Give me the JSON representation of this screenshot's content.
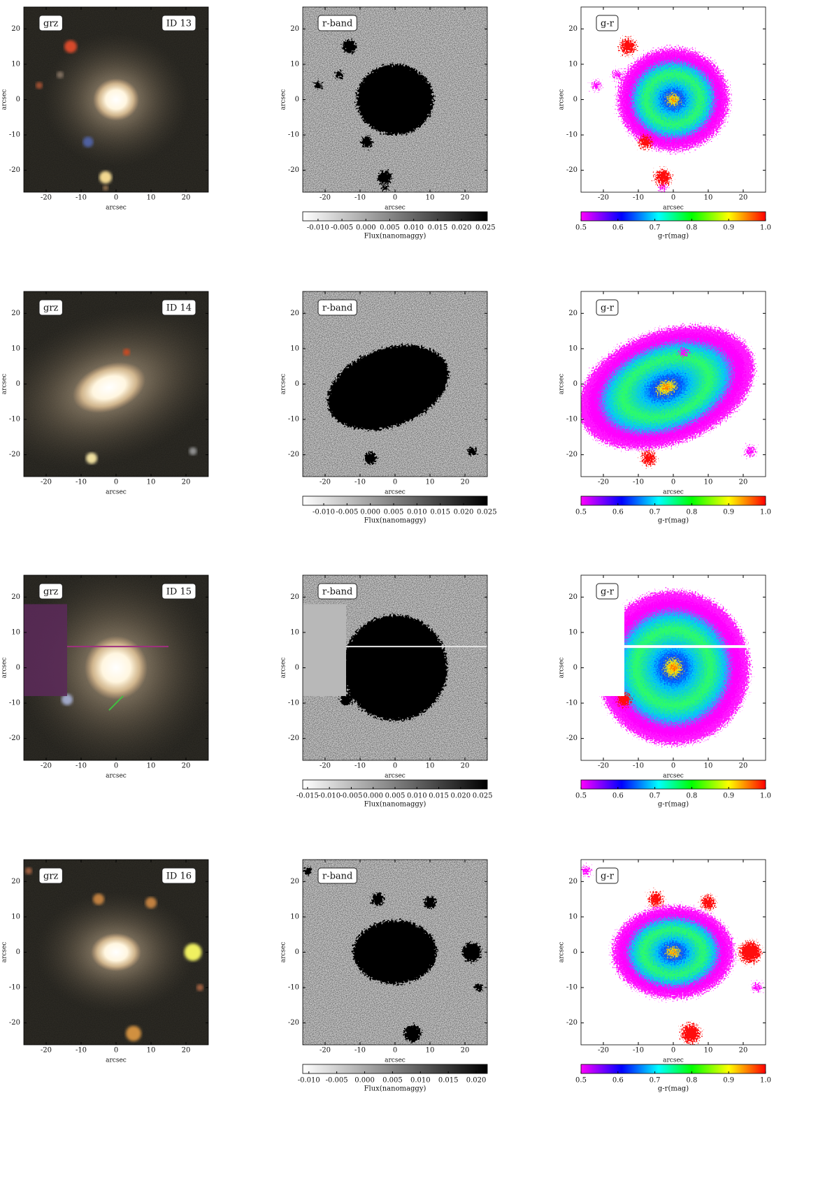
{
  "figure": {
    "image_axis": {
      "label": "arcsec",
      "xlim": [
        -26.4,
        26.4
      ],
      "ylim": [
        -26.2,
        26.2
      ],
      "xticks": [
        -20,
        -10,
        0,
        10,
        20
      ],
      "yticks": [
        -20,
        -10,
        0,
        10,
        20
      ]
    },
    "band_labels": [
      "grz",
      "r-band",
      "g-r"
    ],
    "colorbar_labels": {
      "flux": "Flux(nanomaggy)",
      "color": "g-r(mag)"
    },
    "color_colorbar": {
      "lim": [
        0.5,
        1.0
      ],
      "ticks": [
        0.5,
        0.6,
        0.7,
        0.8,
        0.9,
        {
          "value": 1.0,
          "label": "1.0"
        }
      ]
    },
    "rows": [
      {
        "id": "ID 13",
        "flux_lim": [
          -0.0132,
          0.0254
        ],
        "flux_ticks": [
          {
            "value": -0.01,
            "label": "-0.010"
          },
          {
            "value": -0.005,
            "label": "-0.005"
          },
          {
            "value": 0,
            "label": "0.000"
          },
          {
            "value": 0.005,
            "label": "0.005"
          },
          {
            "value": 0.01,
            "label": "0.010"
          },
          {
            "value": 0.015,
            "label": "0.015"
          },
          {
            "value": 0.02,
            "label": "0.020"
          },
          {
            "value": 0.025,
            "label": "0.025"
          }
        ]
      },
      {
        "id": "ID 14",
        "flux_lim": [
          -0.0145,
          0.0251
        ],
        "flux_ticks": [
          {
            "value": -0.01,
            "label": "-0.010"
          },
          {
            "value": -0.005,
            "label": "-0.005"
          },
          {
            "value": 0,
            "label": "0.000"
          },
          {
            "value": 0.005,
            "label": "0.005"
          },
          {
            "value": 0.01,
            "label": "0.010"
          },
          {
            "value": 0.015,
            "label": "0.015"
          },
          {
            "value": 0.02,
            "label": "0.020"
          },
          {
            "value": 0.025,
            "label": "0.025"
          }
        ]
      },
      {
        "id": "ID 15",
        "flux_lim": [
          -0.0161,
          0.0261
        ],
        "flux_ticks": [
          {
            "value": -0.015,
            "label": "-0.015"
          },
          {
            "value": -0.01,
            "label": "-0.010"
          },
          {
            "value": -0.005,
            "label": "-0.005"
          },
          {
            "value": 0,
            "label": "0.000"
          },
          {
            "value": 0.005,
            "label": "0.005"
          },
          {
            "value": 0.01,
            "label": "0.010"
          },
          {
            "value": 0.015,
            "label": "0.015"
          },
          {
            "value": 0.02,
            "label": "0.020"
          },
          {
            "value": 0.025,
            "label": "0.025"
          }
        ]
      },
      {
        "id": "ID 16",
        "flux_lim": [
          -0.0111,
          0.022
        ],
        "flux_ticks": [
          {
            "value": -0.01,
            "label": "-0.010"
          },
          {
            "value": -0.005,
            "label": "-0.005"
          },
          {
            "value": 0,
            "label": "0.000"
          },
          {
            "value": 0.005,
            "label": "0.005"
          },
          {
            "value": 0.01,
            "label": "0.010"
          },
          {
            "value": 0.015,
            "label": "0.015"
          },
          {
            "value": 0.02,
            "label": "0.020"
          }
        ]
      }
    ]
  }
}
